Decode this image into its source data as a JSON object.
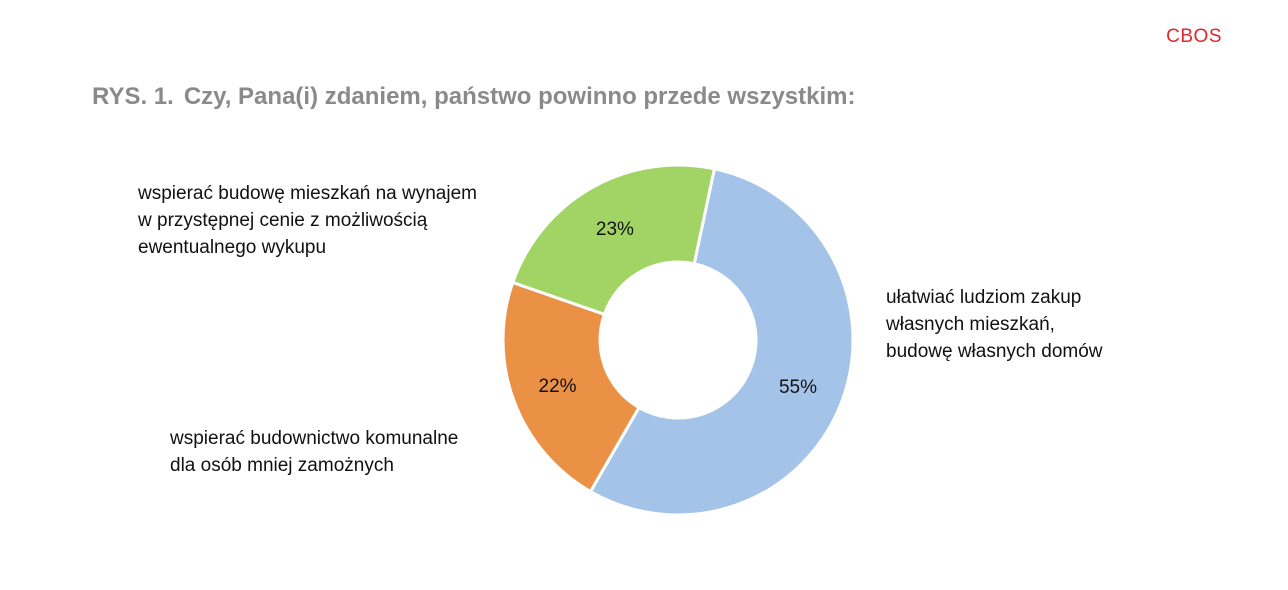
{
  "header": {
    "brand": "CBOS",
    "figure_label": "RYS. 1.",
    "title": "Czy, Pana(i) zdaniem, państwo powinno przede wszystkim:"
  },
  "chart_data": {
    "type": "pie",
    "donut": true,
    "title": "Czy, Pana(i) zdaniem, państwo powinno przede wszystkim:",
    "categories": [
      [
        "ułatwiać ludziom zakup",
        "własnych mieszkań,",
        "budowę własnych domów"
      ],
      [
        "wspierać budownictwo komunalne",
        "dla osób mniej zamożnych"
      ],
      [
        "wspierać budowę mieszkań na wynajem",
        "w przystępnej cenie z możliwością",
        "ewentualnego wykupu"
      ]
    ],
    "values": [
      55,
      22,
      23
    ],
    "value_labels": [
      "55%",
      "22%",
      "23%"
    ],
    "colors": [
      "#a4c3e8",
      "#eb9145",
      "#a1d465"
    ],
    "start_angle_deg": 12,
    "direction": "clockwise"
  }
}
